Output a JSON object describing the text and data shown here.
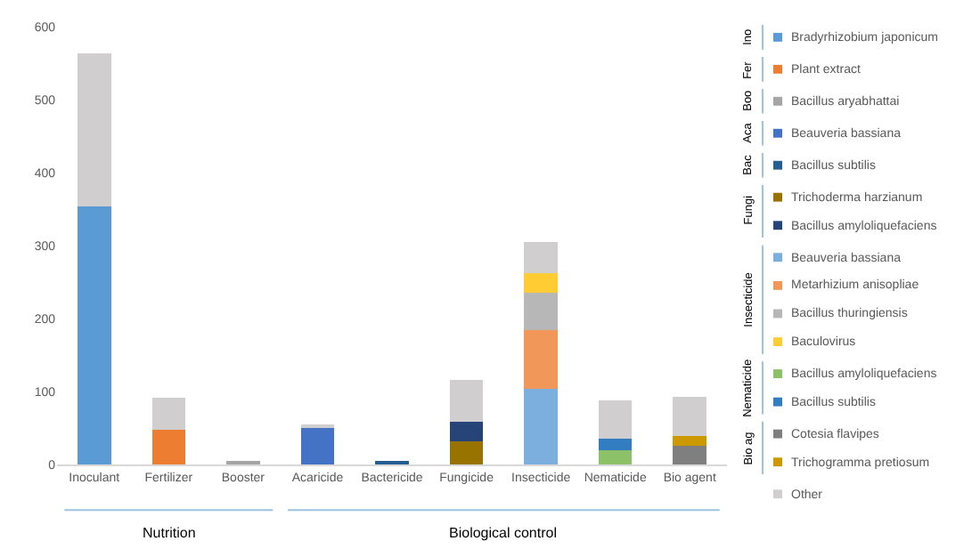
{
  "chart_data": {
    "type": "bar",
    "stacked": true,
    "categories": [
      "Inoculant",
      "Fertilizer",
      "Booster",
      "Acaricide",
      "Bactericide",
      "Fungicide",
      "Insecticide",
      "Nematicide",
      "Bio agent"
    ],
    "series": [
      {
        "name": "Bradyrhizobium japonicum",
        "color": "#5b9bd5",
        "values": [
          354,
          null,
          null,
          null,
          null,
          null,
          null,
          null,
          null
        ]
      },
      {
        "name": "Plant extract",
        "color": "#ed7d31",
        "values": [
          null,
          48,
          null,
          null,
          null,
          null,
          null,
          null,
          null
        ]
      },
      {
        "name": "Bacillus aryabhattai",
        "color": "#a5a5a5",
        "values": [
          null,
          null,
          3,
          null,
          null,
          null,
          null,
          null,
          null
        ]
      },
      {
        "name": "Beauveria bassiana",
        "color": "#4472c4",
        "values": [
          null,
          null,
          null,
          50,
          null,
          null,
          null,
          null,
          null
        ]
      },
      {
        "name": "Bacillus subtilis",
        "color": "#255e91",
        "values": [
          null,
          null,
          null,
          null,
          4,
          null,
          null,
          null,
          null
        ]
      },
      {
        "name": "Trichoderma harzianum",
        "color": "#997300",
        "values": [
          null,
          null,
          null,
          null,
          null,
          32,
          null,
          null,
          null
        ]
      },
      {
        "name": "Bacillus amyloliquefaciens",
        "color": "#264478",
        "values": [
          null,
          null,
          null,
          null,
          null,
          26,
          null,
          null,
          null
        ]
      },
      {
        "name": "Beauveria bassiana",
        "color": "#7cafdd",
        "values": [
          null,
          null,
          null,
          null,
          null,
          null,
          104,
          null,
          null
        ]
      },
      {
        "name": "Metarhizium anisopliae",
        "color": "#f1975a",
        "values": [
          null,
          null,
          null,
          null,
          null,
          null,
          80,
          null,
          null
        ]
      },
      {
        "name": "Bacillus thuringiensis",
        "color": "#b7b7b7",
        "values": [
          null,
          null,
          null,
          null,
          null,
          null,
          51,
          null,
          null
        ]
      },
      {
        "name": "Baculovirus",
        "color": "#ffcd33",
        "values": [
          null,
          null,
          null,
          null,
          null,
          null,
          27,
          null,
          null
        ]
      },
      {
        "name": "Bacillus amyloliquefaciens",
        "color": "#8cc168",
        "values": [
          null,
          null,
          null,
          null,
          null,
          null,
          null,
          19,
          null
        ]
      },
      {
        "name": "Bacillus subtilis",
        "color": "#327dc2",
        "values": [
          null,
          null,
          null,
          null,
          null,
          null,
          null,
          16,
          null
        ]
      },
      {
        "name": "Cotesia flavipes",
        "color": "#7f7f7f",
        "values": [
          null,
          null,
          null,
          null,
          null,
          null,
          null,
          null,
          26
        ]
      },
      {
        "name": "Trichogramma pretiosum",
        "color": "#cc9a00",
        "values": [
          null,
          null,
          null,
          null,
          null,
          null,
          null,
          null,
          13
        ]
      },
      {
        "name": "Other",
        "color": "#d0cece",
        "values": [
          210,
          43,
          null,
          5,
          null,
          58,
          43,
          53,
          54
        ]
      }
    ],
    "ylim": [
      0,
      600
    ],
    "yticks": [
      0,
      100,
      200,
      300,
      400,
      500,
      600
    ],
    "legend": "right",
    "annotations": [
      "Nutrition",
      "Biological control",
      "Ino",
      "Fer",
      "Boo",
      "Aca",
      "Bac",
      "Fungi",
      "Insecticide",
      "Nematicide",
      "Bio ag"
    ]
  }
}
